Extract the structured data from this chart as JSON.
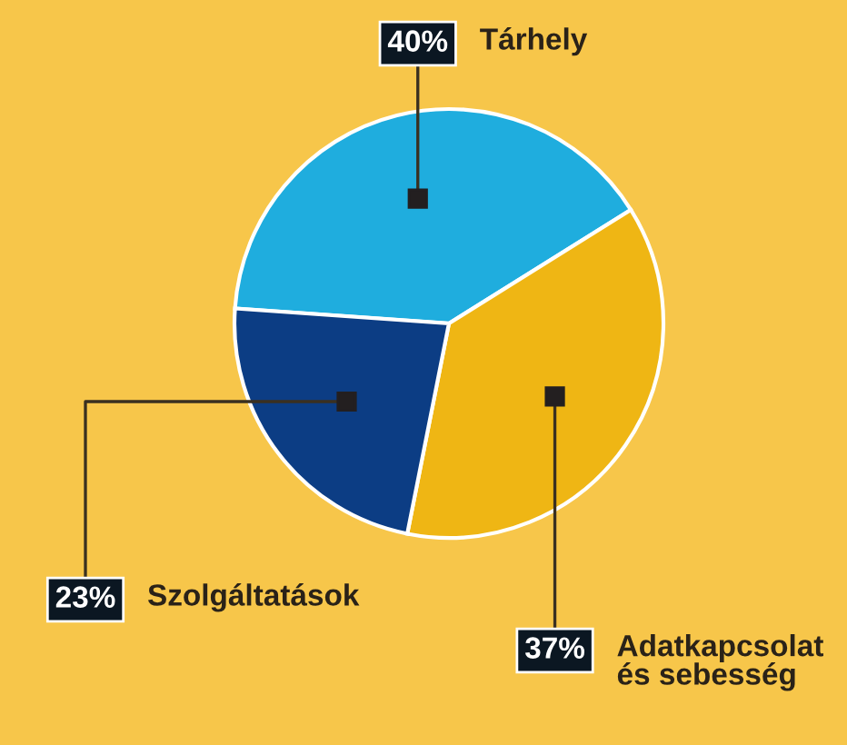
{
  "chart_data": {
    "type": "pie",
    "categories": [
      "Tárhely",
      "Adatkapcsolat\nés sebesség",
      "Szolgáltatások"
    ],
    "values": [
      40,
      37,
      23
    ],
    "colors": [
      "#1fadde",
      "#efb614",
      "#0c3d84"
    ],
    "value_labels": [
      "40%",
      "37%",
      "23%"
    ]
  }
}
